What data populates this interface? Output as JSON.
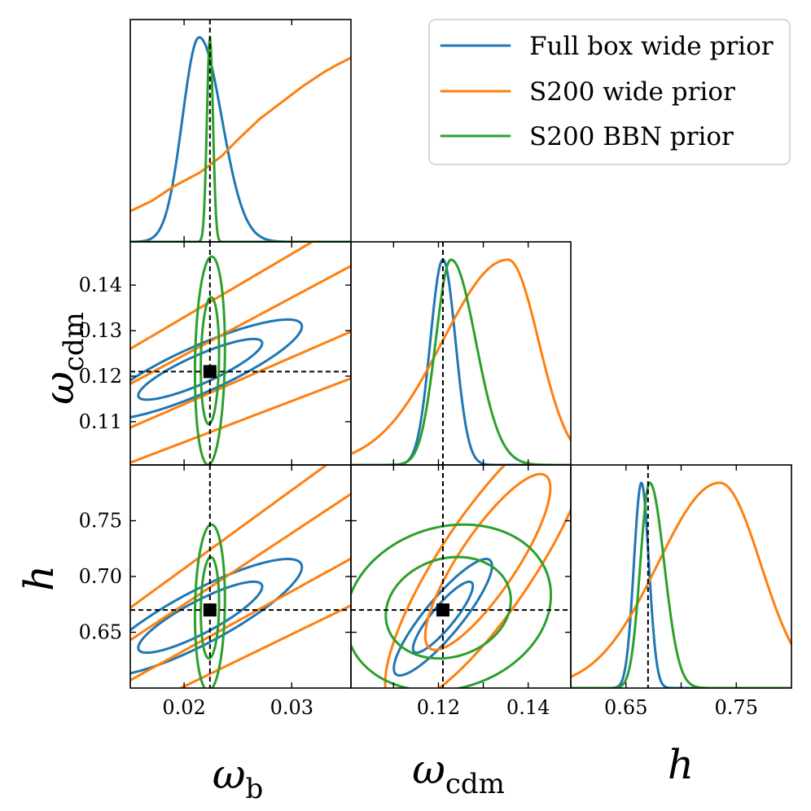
{
  "chart_data": {
    "type": "corner",
    "parameters": [
      {
        "key": "wb",
        "label_main": "ω",
        "label_sub": "b",
        "range": [
          0.015,
          0.0355
        ],
        "ticks": [
          0.02,
          0.03
        ],
        "tick_labels": [
          "0.02",
          "0.03"
        ],
        "fiducial": 0.0224
      },
      {
        "key": "wcdm",
        "label_main": "ω",
        "label_sub": "cdm",
        "range": [
          0.1005,
          0.1495
        ],
        "ticks": [
          0.11,
          0.12,
          0.13,
          0.14
        ],
        "tick_labels": [
          "0.11",
          "0.12",
          "0.13",
          "0.14"
        ],
        "fiducial": 0.121
      },
      {
        "key": "h",
        "label_main": "h",
        "label_sub": "",
        "range": [
          0.6,
          0.8
        ],
        "ticks": [
          0.65,
          0.7,
          0.75
        ],
        "tick_labels": [
          "0.65",
          "0.70",
          "0.75"
        ],
        "fiducial": 0.67
      }
    ],
    "x_tick_labels": {
      "wb": [
        "0.02",
        "0.03"
      ],
      "wcdm": [
        "0.12",
        "0.14"
      ],
      "h": [
        "0.65",
        "0.75"
      ]
    },
    "series": [
      {
        "name": "Full box wide prior",
        "color": "#1f77b4",
        "marginals": {
          "wb": {
            "type": "skewgauss",
            "peak": 0.0214,
            "sigma_left": 0.00155,
            "sigma_right": 0.0021
          },
          "wcdm": {
            "type": "gauss",
            "mean": 0.121,
            "sigma": 0.0028
          },
          "h": {
            "type": "gauss",
            "mean": 0.664,
            "sigma": 0.0068
          }
        },
        "contours": {
          "wcdm_wb": [
            {
              "center": [
                0.0215,
                0.1215
              ],
              "sx": 0.0038,
              "sy": 0.0044,
              "rho": 0.86
            }
          ],
          "h_wb": [
            {
              "center": [
                0.0215,
                0.6635
              ],
              "sx": 0.0038,
              "sy": 0.021,
              "rho": 0.86
            }
          ],
          "h_wcdm": [
            {
              "center": [
                0.121,
                0.6635
              ],
              "sx": 0.0044,
              "sy": 0.021,
              "rho": 0.88
            }
          ]
        }
      },
      {
        "name": "S200 wide prior",
        "color": "#ff7f0e",
        "marginals": {
          "wb": {
            "type": "samples",
            "x": [
              0.015,
              0.017,
              0.019,
              0.0215,
              0.0235,
              0.025,
              0.027,
              0.029,
              0.031,
              0.033,
              0.034,
              0.0355
            ],
            "y": [
              0.15,
              0.2,
              0.27,
              0.34,
              0.42,
              0.5,
              0.6,
              0.68,
              0.76,
              0.83,
              0.86,
              0.9
            ]
          },
          "wcdm": {
            "type": "skewgauss",
            "peak": 0.1355,
            "sigma_left": 0.0145,
            "sigma_right": 0.0068
          },
          "h": {
            "type": "skewgauss",
            "peak": 0.735,
            "sigma_left": 0.056,
            "sigma_right": 0.037
          }
        },
        "contours": {
          "wcdm_wb": [
            {
              "type": "band",
              "x": [
                0.015,
                0.0355
              ],
              "center": [
                0.1135,
                0.137
              ],
              "half_width": [
                0.0048,
                0.0072
              ]
            },
            {
              "type": "band",
              "x": [
                0.015,
                0.0355
              ],
              "center": [
                0.1135,
                0.137
              ],
              "half_width": [
                0.0125,
                0.0175
              ]
            }
          ],
          "h_wb": [
            {
              "type": "band",
              "x": [
                0.015,
                0.0355
              ],
              "center": [
                0.625,
                0.745
              ],
              "half_width": [
                0.018,
                0.029
              ]
            },
            {
              "type": "band",
              "x": [
                0.015,
                0.0355
              ],
              "center": [
                0.625,
                0.745
              ],
              "half_width": [
                0.047,
                0.071
              ]
            }
          ],
          "h_wcdm": [
            {
              "center": [
                0.131,
                0.713
              ],
              "sx": 0.0092,
              "sy": 0.052,
              "rho": 0.84
            }
          ]
        }
      },
      {
        "name": "S200 BBN prior",
        "color": "#2ca02c",
        "marginals": {
          "wb": {
            "type": "gauss",
            "mean": 0.0224,
            "sigma": 0.00028
          },
          "wcdm": {
            "type": "skewgauss",
            "peak": 0.1228,
            "sigma_left": 0.0034,
            "sigma_right": 0.0055
          },
          "h": {
            "type": "skewgauss",
            "peak": 0.6715,
            "sigma_left": 0.0085,
            "sigma_right": 0.0132
          }
        },
        "contours": {
          "wcdm_wb": [
            {
              "center": [
                0.0224,
                0.1234
              ],
              "sx": 0.00056,
              "sy": 0.0092,
              "rho": 0.12
            }
          ],
          "h_wb": [
            {
              "center": [
                0.0224,
                0.672
              ],
              "sx": 0.00056,
              "sy": 0.03,
              "rho": 0.1
            }
          ],
          "h_wcdm": [
            {
              "center": [
                0.1222,
                0.672
              ],
              "sx": 0.0092,
              "sy": 0.03,
              "rho": 0.15
            }
          ]
        }
      }
    ],
    "contour_levels": [
      1.515,
      2.486
    ],
    "reference_lines": "dashed black lines at fiducial values",
    "fiducial_marker": "black square",
    "legend": {
      "position": "top-right",
      "entries": [
        "Full box wide prior",
        "S200 wide prior",
        "S200 BBN prior"
      ]
    }
  }
}
